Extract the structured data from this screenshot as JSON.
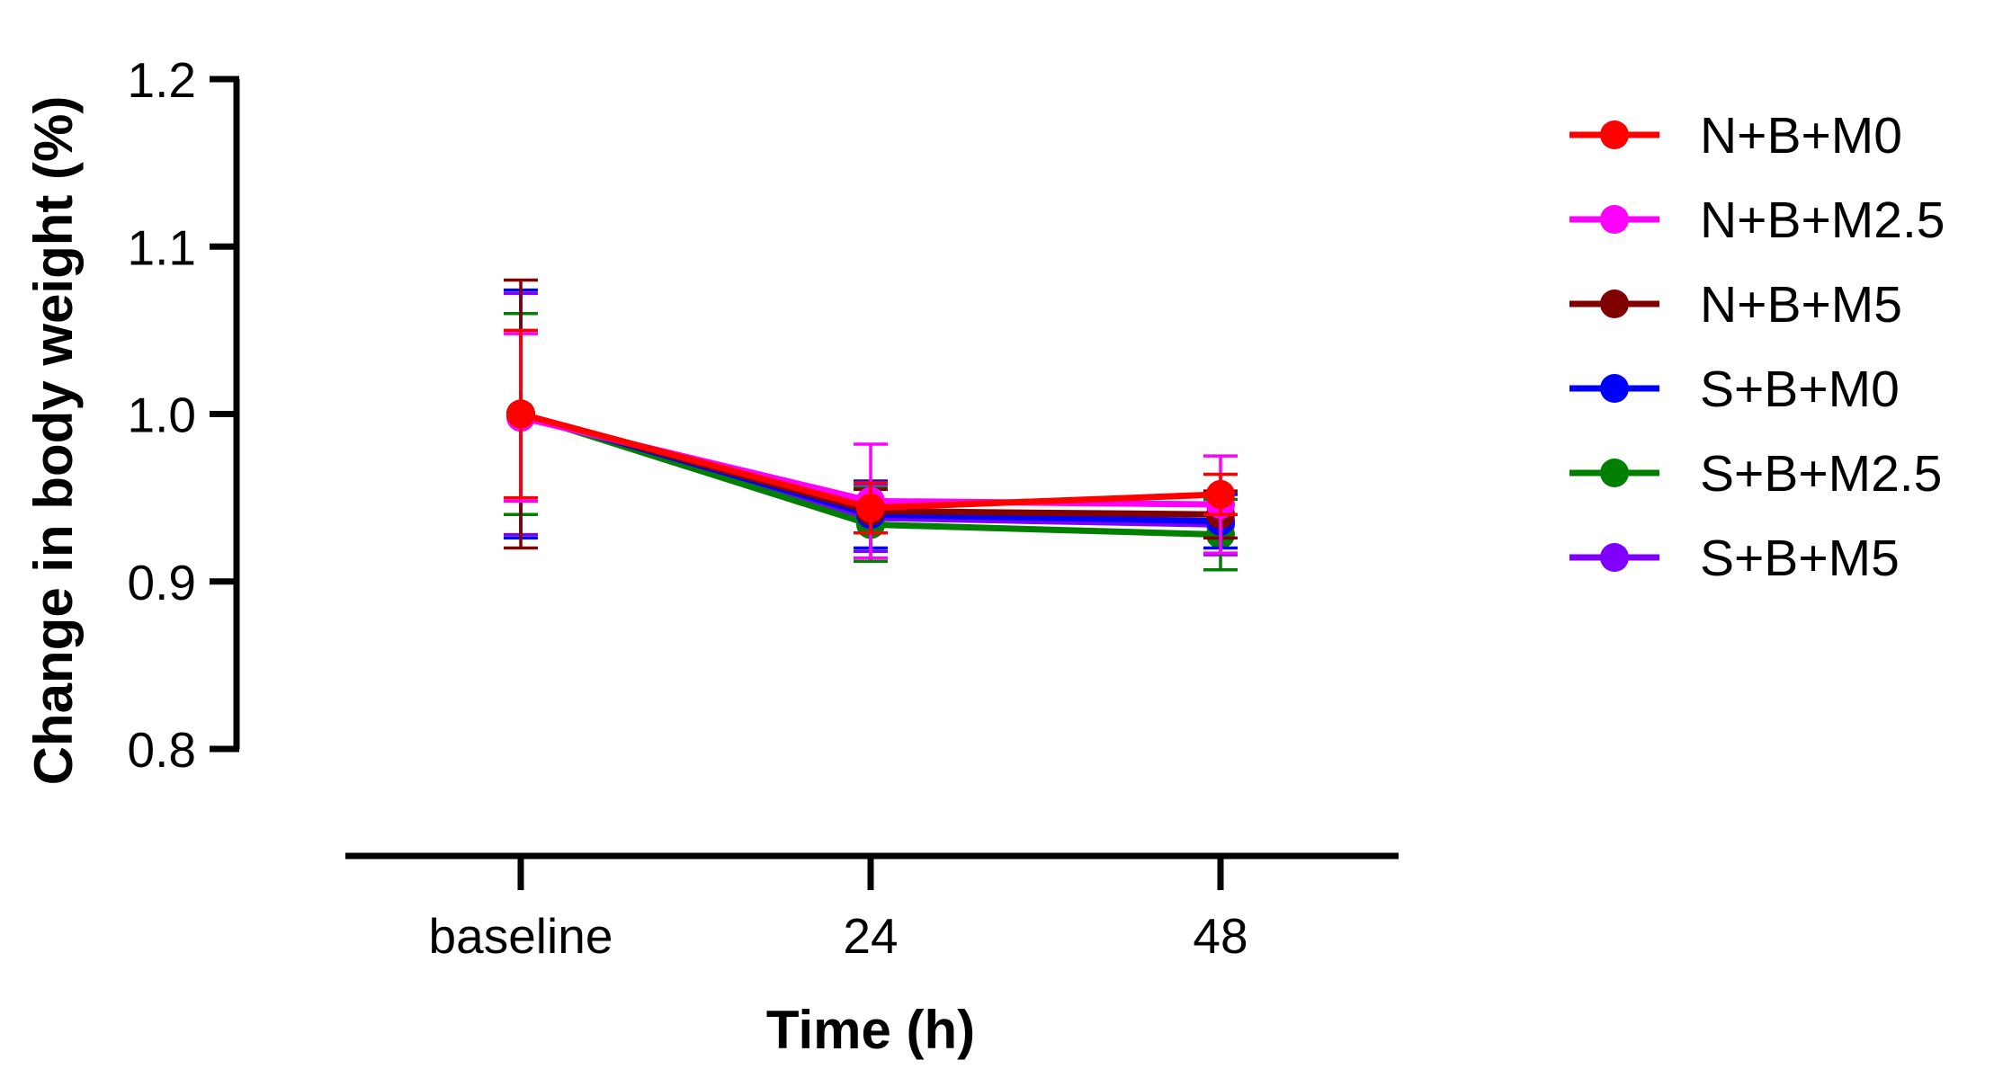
{
  "chart_data": {
    "type": "line",
    "title": "",
    "xlabel": "Time (h)",
    "ylabel": "Change in body weight (%)",
    "categories": [
      "baseline",
      "24",
      "48"
    ],
    "ylim": [
      0.8,
      1.2
    ],
    "yticks": [
      "0.8",
      "0.9",
      "1.0",
      "1.1",
      "1.2"
    ],
    "ytick_values": [
      0.8,
      0.9,
      1.0,
      1.1,
      1.2
    ],
    "grid": false,
    "legend_position": "right",
    "series": [
      {
        "name": "N+B+M0",
        "color": "#ff0000",
        "values": [
          1.0,
          0.944,
          0.952
        ],
        "errors": [
          0.05,
          0.015,
          0.012
        ]
      },
      {
        "name": "N+B+M2.5",
        "color": "#ff00ff",
        "values": [
          0.998,
          0.948,
          0.946
        ],
        "errors": [
          0.05,
          0.034,
          0.029
        ]
      },
      {
        "name": "N+B+M5",
        "color": "#800000",
        "values": [
          1.0,
          0.942,
          0.94
        ],
        "errors": [
          0.08,
          0.013,
          0.014
        ]
      },
      {
        "name": "S+B+M0",
        "color": "#0000ff",
        "values": [
          1.0,
          0.94,
          0.936
        ],
        "errors": [
          0.074,
          0.02,
          0.016
        ]
      },
      {
        "name": "S+B+M2.5",
        "color": "#007f00",
        "values": [
          1.0,
          0.934,
          0.928
        ],
        "errors": [
          0.06,
          0.022,
          0.021
        ]
      },
      {
        "name": "S+B+M5",
        "color": "#8000ff",
        "values": [
          1.0,
          0.938,
          0.934
        ],
        "errors": [
          0.072,
          0.02,
          0.018
        ]
      }
    ]
  }
}
